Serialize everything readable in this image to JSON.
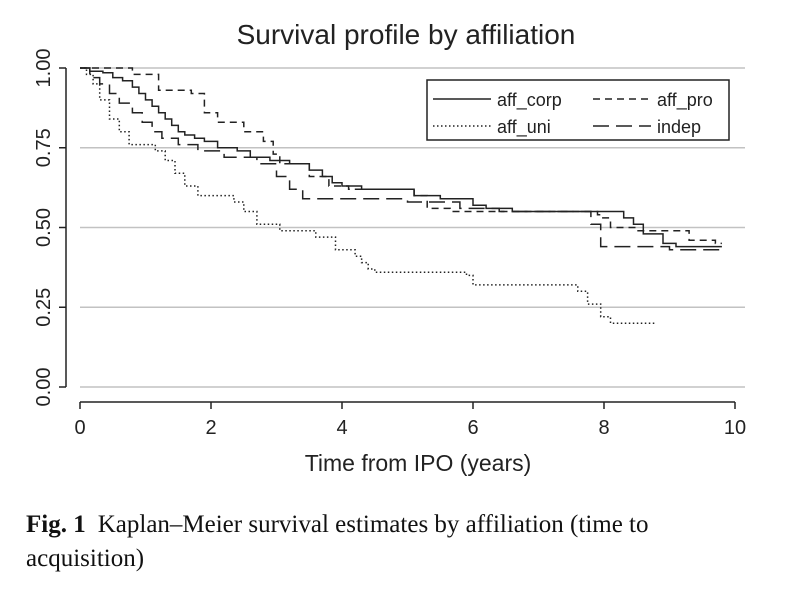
{
  "chart_data": {
    "type": "line",
    "subtype": "step",
    "title": "Survival profile by affiliation",
    "xlabel": "Time from IPO (years)",
    "ylabel": "",
    "xlim": [
      0,
      10
    ],
    "ylim": [
      0,
      1
    ],
    "xticks": [
      "0",
      "2",
      "4",
      "6",
      "8",
      "10"
    ],
    "yticks": [
      "0.00",
      "0.25",
      "0.50",
      "0.75",
      "1.00"
    ],
    "grid": "horizontal",
    "legend_position": "top-right",
    "series": [
      {
        "name": "aff_corp",
        "style": "solid",
        "points": [
          [
            0,
            1.0
          ],
          [
            0.15,
            0.99
          ],
          [
            0.35,
            0.985
          ],
          [
            0.5,
            0.97
          ],
          [
            0.65,
            0.96
          ],
          [
            0.8,
            0.94
          ],
          [
            0.9,
            0.92
          ],
          [
            1.0,
            0.9
          ],
          [
            1.1,
            0.88
          ],
          [
            1.2,
            0.86
          ],
          [
            1.3,
            0.84
          ],
          [
            1.4,
            0.82
          ],
          [
            1.5,
            0.8
          ],
          [
            1.6,
            0.79
          ],
          [
            1.75,
            0.78
          ],
          [
            1.9,
            0.77
          ],
          [
            2.1,
            0.75
          ],
          [
            2.4,
            0.74
          ],
          [
            2.6,
            0.72
          ],
          [
            2.9,
            0.71
          ],
          [
            3.2,
            0.7
          ],
          [
            3.5,
            0.68
          ],
          [
            3.7,
            0.66
          ],
          [
            3.85,
            0.64
          ],
          [
            4.0,
            0.63
          ],
          [
            4.3,
            0.62
          ],
          [
            4.6,
            0.62
          ],
          [
            5.1,
            0.6
          ],
          [
            5.5,
            0.59
          ],
          [
            6.0,
            0.57
          ],
          [
            6.2,
            0.56
          ],
          [
            6.6,
            0.55
          ],
          [
            8.3,
            0.53
          ],
          [
            8.45,
            0.51
          ],
          [
            8.6,
            0.48
          ],
          [
            8.9,
            0.45
          ],
          [
            9.1,
            0.44
          ],
          [
            9.7,
            0.44
          ],
          [
            9.8,
            0.44
          ]
        ]
      },
      {
        "name": "aff_pro",
        "style": "dashed",
        "points": [
          [
            0,
            1.0
          ],
          [
            0.8,
            0.98
          ],
          [
            1.2,
            0.93
          ],
          [
            1.7,
            0.92
          ],
          [
            1.9,
            0.86
          ],
          [
            2.1,
            0.83
          ],
          [
            2.5,
            0.8
          ],
          [
            2.8,
            0.77
          ],
          [
            2.95,
            0.73
          ],
          [
            3.05,
            0.7
          ],
          [
            3.5,
            0.66
          ],
          [
            3.8,
            0.63
          ],
          [
            4.1,
            0.62
          ],
          [
            5.1,
            0.6
          ],
          [
            5.3,
            0.56
          ],
          [
            5.65,
            0.55
          ],
          [
            7.9,
            0.54
          ],
          [
            7.95,
            0.53
          ],
          [
            8.1,
            0.5
          ],
          [
            8.5,
            0.49
          ],
          [
            9.3,
            0.46
          ],
          [
            9.7,
            0.45
          ],
          [
            9.8,
            0.45
          ]
        ]
      },
      {
        "name": "aff_uni",
        "style": "dotted",
        "points": [
          [
            0,
            1.0
          ],
          [
            0.1,
            0.98
          ],
          [
            0.2,
            0.95
          ],
          [
            0.3,
            0.9
          ],
          [
            0.45,
            0.84
          ],
          [
            0.6,
            0.8
          ],
          [
            0.75,
            0.76
          ],
          [
            1.15,
            0.74
          ],
          [
            1.3,
            0.71
          ],
          [
            1.45,
            0.67
          ],
          [
            1.6,
            0.63
          ],
          [
            1.8,
            0.6
          ],
          [
            2.35,
            0.58
          ],
          [
            2.5,
            0.55
          ],
          [
            2.7,
            0.51
          ],
          [
            3.05,
            0.49
          ],
          [
            3.6,
            0.47
          ],
          [
            3.9,
            0.43
          ],
          [
            4.2,
            0.41
          ],
          [
            4.3,
            0.39
          ],
          [
            4.4,
            0.37
          ],
          [
            4.5,
            0.36
          ],
          [
            5.9,
            0.35
          ],
          [
            6.0,
            0.32
          ],
          [
            7.6,
            0.3
          ],
          [
            7.75,
            0.26
          ],
          [
            7.95,
            0.22
          ],
          [
            8.1,
            0.2
          ],
          [
            8.8,
            0.2
          ]
        ]
      },
      {
        "name": "indep",
        "style": "longdash",
        "points": [
          [
            0,
            1.0
          ],
          [
            0.15,
            0.97
          ],
          [
            0.3,
            0.95
          ],
          [
            0.45,
            0.92
          ],
          [
            0.6,
            0.89
          ],
          [
            0.8,
            0.86
          ],
          [
            0.95,
            0.83
          ],
          [
            1.1,
            0.8
          ],
          [
            1.25,
            0.78
          ],
          [
            1.5,
            0.76
          ],
          [
            1.8,
            0.74
          ],
          [
            2.2,
            0.72
          ],
          [
            2.7,
            0.7
          ],
          [
            3.0,
            0.66
          ],
          [
            3.2,
            0.62
          ],
          [
            3.4,
            0.59
          ],
          [
            3.8,
            0.59
          ],
          [
            5.0,
            0.58
          ],
          [
            5.8,
            0.56
          ],
          [
            6.4,
            0.55
          ],
          [
            7.7,
            0.55
          ],
          [
            7.8,
            0.51
          ],
          [
            7.95,
            0.44
          ],
          [
            8.7,
            0.44
          ],
          [
            9.0,
            0.43
          ],
          [
            9.8,
            0.43
          ]
        ]
      }
    ]
  },
  "figure": {
    "label": "Fig. 1",
    "caption": "Kaplan–Meier survival estimates by affiliation (time to acquisition)"
  }
}
